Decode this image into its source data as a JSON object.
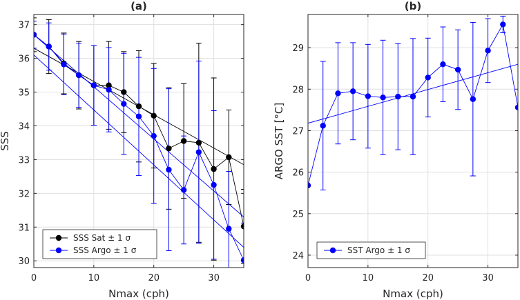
{
  "chart_data": [
    {
      "type": "scatter",
      "title": "(a)",
      "xlabel": "Nmax (cph)",
      "ylabel": "SSS",
      "xlim": [
        0,
        35
      ],
      "ylim": [
        29.8,
        37.3
      ],
      "xticks": [
        "0",
        "10",
        "20",
        "30"
      ],
      "xtick_values": [
        0,
        10,
        20,
        30
      ],
      "yticks": [
        "30",
        "31",
        "32",
        "33",
        "34",
        "35",
        "36",
        "37"
      ],
      "ytick_values": [
        30,
        31,
        32,
        33,
        34,
        35,
        36,
        37
      ],
      "grid": true,
      "legend_position": "bottom-left",
      "series": [
        {
          "name": "SSS Sat ± 1 σ",
          "color": "#000000",
          "x": [
            0,
            2.5,
            5,
            7.5,
            10,
            12.5,
            15,
            17.5,
            20,
            22.5,
            25,
            27.5,
            30,
            32.5,
            35
          ],
          "y": [
            36.7,
            36.35,
            35.85,
            35.5,
            35.2,
            35.2,
            35.0,
            34.58,
            34.3,
            33.33,
            33.55,
            33.5,
            32.72,
            33.07,
            31.02
          ],
          "err": [
            0.5,
            0.8,
            0.9,
            1.0,
            1.18,
            1.3,
            1.2,
            1.65,
            1.55,
            1.8,
            1.7,
            2.95,
            2.7,
            1.4,
            1.1
          ],
          "fit": {
            "x": [
              0,
              35
            ],
            "y": [
              36.3,
              32.85
            ]
          }
        },
        {
          "name": "SSS Argo ± 1 σ",
          "color": "#0000ff",
          "x": [
            0,
            2.5,
            5,
            7.5,
            10,
            12.5,
            15,
            17.5,
            20,
            22.5,
            25,
            27.5,
            30,
            32.5,
            35
          ],
          "y": [
            36.7,
            36.35,
            35.82,
            35.5,
            35.2,
            35.07,
            34.65,
            34.28,
            33.7,
            32.7,
            32.1,
            33.22,
            32.25,
            30.95,
            30.02
          ],
          "err": [
            0.4,
            0.7,
            0.9,
            0.95,
            1.18,
            1.25,
            1.5,
            1.75,
            2.0,
            2.4,
            1.6,
            2.7,
            2.2,
            1.7,
            1.1
          ],
          "fits": [
            {
              "x": [
                0,
                35
              ],
              "y": [
                36.7,
                31.3
              ]
            },
            {
              "x": [
                0,
                35
              ],
              "y": [
                36.1,
                30.4
              ]
            }
          ]
        }
      ]
    },
    {
      "type": "scatter",
      "title": "(b)",
      "xlabel": "Nmax (cph)",
      "ylabel": "ARGO SST [°C]",
      "xlim": [
        0,
        35
      ],
      "ylim": [
        23.7,
        29.8
      ],
      "xticks": [
        "0",
        "10",
        "20",
        "30"
      ],
      "xtick_values": [
        0,
        10,
        20,
        30
      ],
      "yticks": [
        "24",
        "25",
        "26",
        "27",
        "28",
        "29"
      ],
      "ytick_values": [
        24,
        25,
        26,
        27,
        28,
        29
      ],
      "grid": true,
      "legend_position": "bottom-left",
      "series": [
        {
          "name": "SST Argo ± 1 σ",
          "color": "#0000ff",
          "x": [
            0,
            2.5,
            5,
            7.5,
            10,
            12.5,
            15,
            17.5,
            20,
            22.5,
            25,
            27.5,
            30,
            32.5,
            35
          ],
          "y": [
            25.68,
            27.12,
            27.9,
            27.95,
            27.83,
            27.8,
            27.82,
            27.82,
            28.28,
            28.6,
            28.47,
            27.76,
            28.93,
            29.56,
            27.56
          ],
          "err": [
            0.0,
            1.55,
            1.22,
            1.17,
            1.25,
            1.38,
            1.28,
            1.4,
            0.95,
            0.9,
            0.96,
            1.85,
            0.77,
            0.2,
            0.0
          ],
          "fit": {
            "x": [
              0,
              35
            ],
            "y": [
              27.18,
              28.6
            ]
          }
        }
      ]
    }
  ]
}
